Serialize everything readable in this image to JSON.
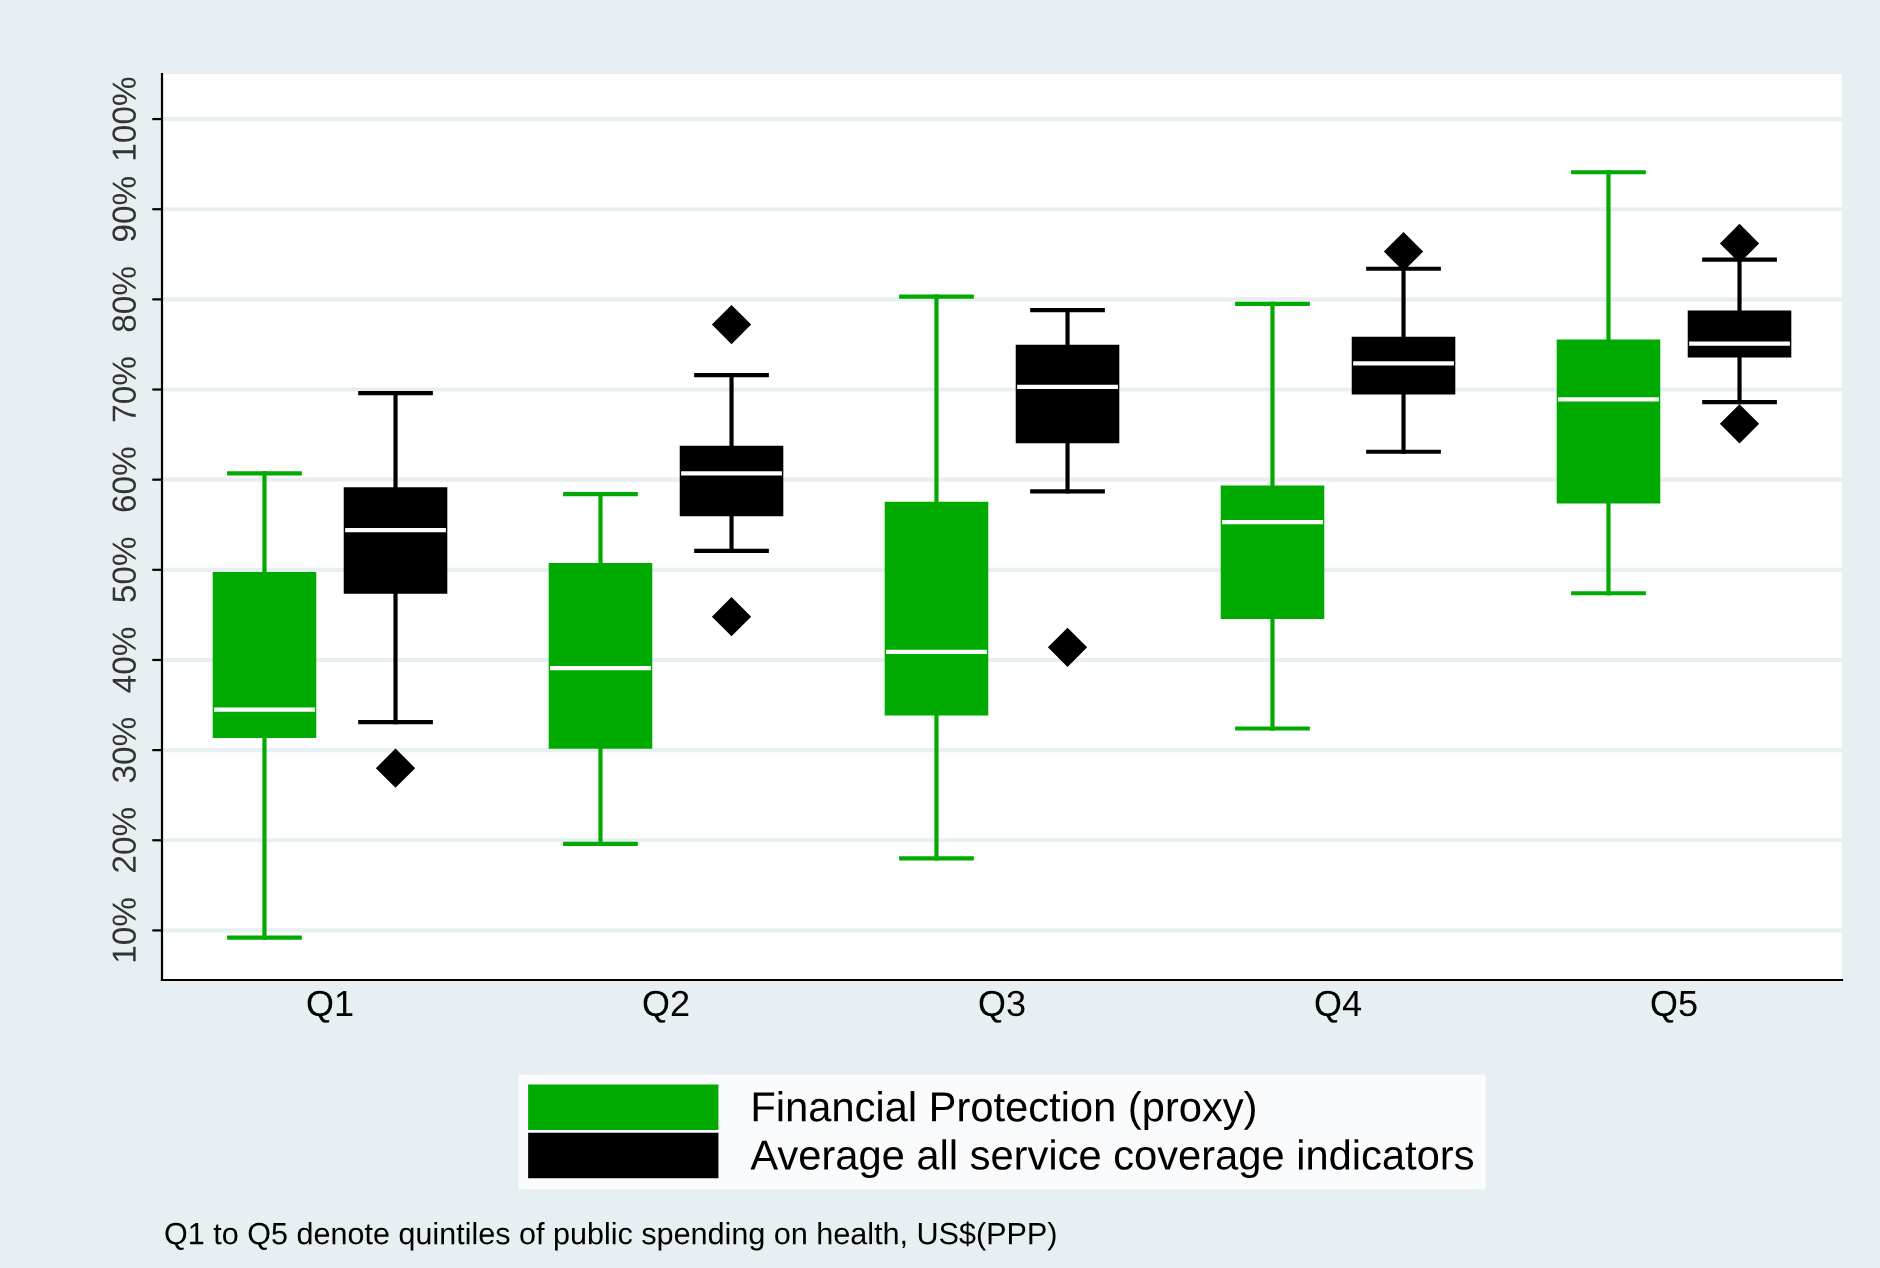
{
  "chart_data": {
    "type": "box",
    "categories": [
      "Q1",
      "Q2",
      "Q3",
      "Q4",
      "Q5"
    ],
    "series": [
      {
        "name": "Financial Protection (proxy)",
        "color": "#00aa00",
        "boxes": [
          {
            "low": 9.2,
            "q1": 31.5,
            "median": 34.5,
            "q3": 49.6,
            "high": 60.7
          },
          {
            "low": 19.6,
            "q1": 30.3,
            "median": 39.1,
            "q3": 50.6,
            "high": 58.4
          },
          {
            "low": 18.0,
            "q1": 34.0,
            "median": 40.9,
            "q3": 57.4,
            "high": 80.3
          },
          {
            "low": 32.4,
            "q1": 44.7,
            "median": 55.3,
            "q3": 59.2,
            "high": 79.5
          },
          {
            "low": 47.4,
            "q1": 57.5,
            "median": 68.9,
            "q3": 75.4,
            "high": 94.1
          }
        ]
      },
      {
        "name": "Average all service coverage indicators",
        "color": "#000000",
        "boxes": [
          {
            "low": 33.1,
            "q1": 47.5,
            "median": 54.4,
            "q3": 59.0,
            "high": 69.6,
            "outliers": [
              28.0
            ]
          },
          {
            "low": 52.1,
            "q1": 56.1,
            "median": 60.7,
            "q3": 63.6,
            "high": 71.6,
            "outliers": [
              77.2,
              44.8
            ]
          },
          {
            "low": 58.7,
            "q1": 64.2,
            "median": 70.3,
            "q3": 74.8,
            "high": 78.8,
            "outliers": [
              41.4
            ]
          },
          {
            "low": 63.1,
            "q1": 69.6,
            "median": 72.9,
            "q3": 75.7,
            "high": 83.4,
            "outliers": [
              85.3
            ]
          },
          {
            "low": 68.6,
            "q1": 73.7,
            "median": 75.1,
            "q3": 78.6,
            "high": 84.4,
            "outliers": [
              86.2,
              66.2
            ]
          }
        ]
      }
    ],
    "ylim": [
      4.5,
      105
    ],
    "yticks": [
      {
        "value": 10,
        "label": "10%"
      },
      {
        "value": 20,
        "label": "20%"
      },
      {
        "value": 30,
        "label": "30%"
      },
      {
        "value": 40,
        "label": "40%"
      },
      {
        "value": 50,
        "label": "50%"
      },
      {
        "value": 60,
        "label": "60%"
      },
      {
        "value": 70,
        "label": "70%"
      },
      {
        "value": 80,
        "label": "80%"
      },
      {
        "value": 90,
        "label": "90%"
      },
      {
        "value": 100,
        "label": "100%"
      }
    ],
    "grid": "y",
    "legend": "bottom",
    "marker": "diamond",
    "annotations": [
      "Q1 to Q5 denote quintiles of public spending on health, US$(PPP)"
    ]
  }
}
